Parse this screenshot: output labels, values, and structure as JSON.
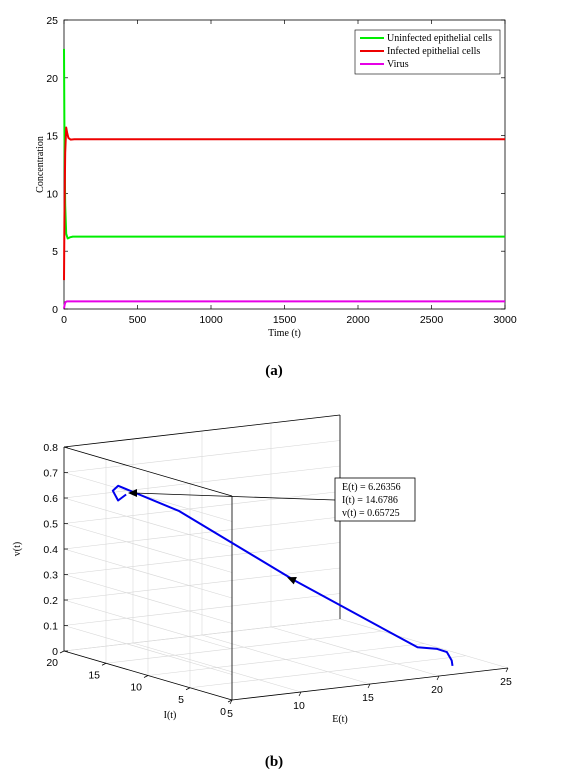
{
  "chart_data": [
    {
      "panel": "(a)",
      "type": "line",
      "xlabel": "Time (t)",
      "ylabel": "Concentration",
      "xlim": [
        0,
        3000
      ],
      "ylim": [
        0,
        25
      ],
      "xticks": [
        "0",
        "500",
        "1000",
        "1500",
        "2000",
        "2500",
        "3000"
      ],
      "yticks": [
        "0",
        "5",
        "10",
        "15",
        "20",
        "25"
      ],
      "legend_position": "top-right",
      "grid": false,
      "series": [
        {
          "name": "Uninfected epithelial cells",
          "color": "#00ee00",
          "x": [
            0,
            3,
            8,
            15,
            25,
            40,
            60,
            100,
            3000
          ],
          "y": [
            22.5,
            15,
            9,
            6.5,
            6.1,
            6.2,
            6.26,
            6.26,
            6.26
          ]
        },
        {
          "name": "Infected epithelial cells",
          "color": "#ee0000",
          "x": [
            0,
            3,
            8,
            15,
            22,
            30,
            45,
            70,
            100,
            3000
          ],
          "y": [
            2.5,
            8,
            13.5,
            15.7,
            15.2,
            14.8,
            14.65,
            14.68,
            14.68,
            14.68
          ]
        },
        {
          "name": "Virus",
          "color": "#e600e6",
          "x": [
            0,
            5,
            10,
            20,
            40,
            3000
          ],
          "y": [
            0.05,
            0.4,
            0.6,
            0.66,
            0.657,
            0.657
          ]
        }
      ]
    },
    {
      "panel": "(b)",
      "type": "line3d",
      "xlabel": "E(t)",
      "ylabel": "I(t)",
      "zlabel": "v(t)",
      "xlim": [
        5,
        25
      ],
      "ylim": [
        0,
        20
      ],
      "zlim": [
        0,
        0.8
      ],
      "xticks": [
        "5",
        "10",
        "15",
        "20",
        "25"
      ],
      "yticks": [
        "0",
        "5",
        "10",
        "15",
        "20"
      ],
      "zticks": [
        "0",
        "0.1",
        "0.2",
        "0.3",
        "0.4",
        "0.5",
        "0.6",
        "0.7",
        "0.8"
      ],
      "grid": true,
      "color": "#0000ee",
      "trajectory": {
        "E": [
          22.5,
          22.5,
          22.4,
          22.0,
          21.0,
          15.0,
          10.0,
          6.8,
          6.1,
          6.0,
          6.26
        ],
        "I": [
          2.5,
          2.6,
          3.0,
          3.5,
          4.2,
          9.0,
          14.5,
          16.5,
          16.0,
          15.2,
          14.68
        ],
        "v": [
          0.0,
          0.02,
          0.05,
          0.06,
          0.066,
          0.32,
          0.57,
          0.67,
          0.66,
          0.63,
          0.657
        ]
      },
      "annotation": {
        "lines": [
          "E(t) = 6.26356",
          "I(t) = 14.6786",
          "v(t) = 0.65725"
        ]
      }
    }
  ],
  "captions": {
    "a": "(a)",
    "b": "(b)"
  }
}
